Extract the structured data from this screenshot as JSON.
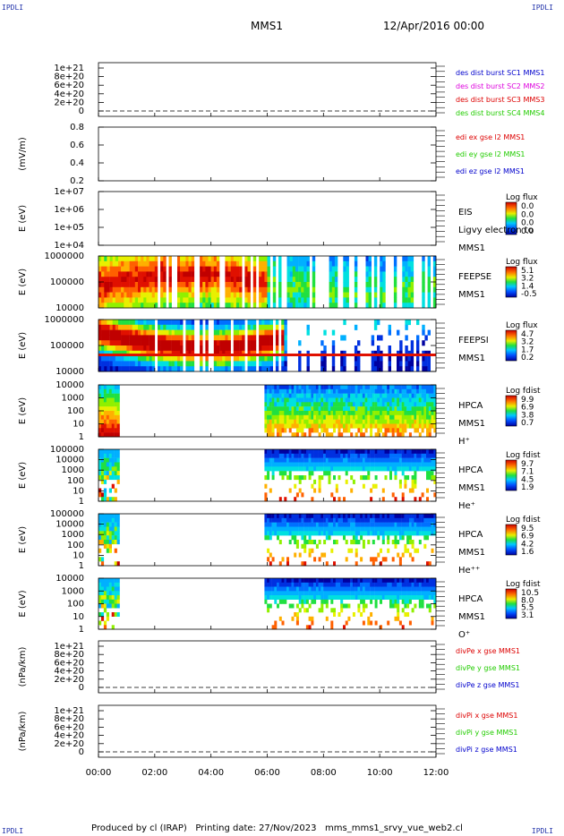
{
  "header": {
    "spacecraft": "MMS1",
    "datetime": "12/Apr/2016 00:00",
    "corner_label": "IPDLI"
  },
  "footer": {
    "text": "Produced by cl (IRAP)   Printing date: 27/Nov/2023   mms_mms1_srvy_vue_web2.cl"
  },
  "colors": {
    "red": "#dd0000",
    "magenta": "#dd00dd",
    "green": "#22cc00",
    "blue": "#0000cc"
  },
  "x_axis": {
    "ticks": [
      "00:00",
      "02:00",
      "04:00",
      "06:00",
      "08:00",
      "10:00",
      "12:00"
    ],
    "range_hours": [
      0,
      12
    ]
  },
  "chart_data": [
    {
      "type": "line",
      "id": "p1",
      "ylabel": "",
      "y_ticks": [
        "1e+21",
        "8e+20",
        "6e+20",
        "4e+20",
        "2e+20",
        "0"
      ],
      "ylim": [
        0,
        1.2e+21
      ],
      "dashed_zero": true,
      "series": [
        {
          "name": "des dist burst SC1 MMS1",
          "color": "#0000cc",
          "values": []
        },
        {
          "name": "des dist burst SC2 MMS2",
          "color": "#dd00dd",
          "values": []
        },
        {
          "name": "des dist burst SC3 MMS3",
          "color": "#dd0000",
          "values": []
        },
        {
          "name": "des dist burst SC4 MMS4",
          "color": "#22cc00",
          "values": []
        }
      ]
    },
    {
      "type": "line",
      "id": "p2",
      "ylabel": "(mV/m)",
      "y_ticks": [
        "0.8",
        "0.6",
        "0.4",
        "0.2"
      ],
      "ylim": [
        0.1,
        0.85
      ],
      "series": [
        {
          "name": "edi ex gse l2 MMS1",
          "color": "#dd0000",
          "values": []
        },
        {
          "name": "edi ey gse l2 MMS1",
          "color": "#22cc00",
          "values": []
        },
        {
          "name": "edi ez gse l2 MMS1",
          "color": "#0000cc",
          "values": []
        }
      ]
    },
    {
      "type": "heatmap",
      "id": "p3",
      "ylabel": "E (eV)",
      "y_ticks": [
        "1e+07",
        "1e+06",
        "1e+05",
        "1e+04"
      ],
      "right_labels": [
        "EIS",
        "Ligvy electron to",
        "MMS1"
      ],
      "colorbar": {
        "title": "Log flux",
        "ticks": [
          "0.0",
          "0.0",
          "0.0",
          "0.0"
        ]
      },
      "coverage_hours": []
    },
    {
      "type": "heatmap",
      "id": "p4",
      "ylabel": "E (eV)",
      "y_ticks": [
        "1000000",
        "100000",
        "10000"
      ],
      "right_labels": [
        "FEEPSE",
        "MMS1"
      ],
      "colorbar": {
        "title": "Log flux",
        "ticks": [
          "5.1",
          "3.2",
          "1.4",
          "-0.5"
        ]
      },
      "coverage_hours": [
        0,
        12
      ]
    },
    {
      "type": "heatmap",
      "id": "p5",
      "ylabel": "E (eV)",
      "y_ticks": [
        "1000000",
        "100000",
        "10000"
      ],
      "right_labels": [
        "FEEPSI",
        "MMS1"
      ],
      "colorbar": {
        "title": "Log flux",
        "ticks": [
          "4.7",
          "3.2",
          "1.7",
          "0.2"
        ]
      },
      "coverage_hours": [
        0,
        12
      ]
    },
    {
      "type": "heatmap",
      "id": "p6",
      "ylabel": "E (eV)",
      "y_ticks": [
        "10000",
        "1000",
        "100",
        "10",
        "1"
      ],
      "right_labels": [
        "HPCA",
        "MMS1",
        "H⁺"
      ],
      "colorbar": {
        "title": "Log fdist",
        "ticks": [
          "9.9",
          "6.9",
          "3.8",
          "0.7"
        ]
      },
      "coverage_hours": [
        [
          0,
          0.75
        ],
        [
          5.9,
          12
        ]
      ]
    },
    {
      "type": "heatmap",
      "id": "p7",
      "ylabel": "E (eV)",
      "y_ticks": [
        "100000",
        "10000",
        "1000",
        "100",
        "10",
        "1"
      ],
      "right_labels": [
        "HPCA",
        "MMS1",
        "He⁺"
      ],
      "colorbar": {
        "title": "Log fdist",
        "ticks": [
          "9.7",
          "7.1",
          "4.5",
          "1.9"
        ]
      },
      "coverage_hours": [
        [
          0,
          0.75
        ],
        [
          5.9,
          12
        ]
      ]
    },
    {
      "type": "heatmap",
      "id": "p8",
      "ylabel": "E (eV)",
      "y_ticks": [
        "100000",
        "10000",
        "1000",
        "100",
        "10",
        "1"
      ],
      "right_labels": [
        "HPCA",
        "MMS1",
        "He⁺⁺"
      ],
      "colorbar": {
        "title": "Log fdist",
        "ticks": [
          "9.5",
          "6.9",
          "4.2",
          "1.6"
        ]
      },
      "coverage_hours": [
        [
          0,
          0.75
        ],
        [
          5.9,
          12
        ]
      ]
    },
    {
      "type": "heatmap",
      "id": "p9",
      "ylabel": "E (eV)",
      "y_ticks": [
        "10000",
        "1000",
        "100",
        "10",
        "1"
      ],
      "right_labels": [
        "HPCA",
        "MMS1",
        "O⁺"
      ],
      "colorbar": {
        "title": "Log fdist",
        "ticks": [
          "10.5",
          "8.0",
          "5.5",
          "3.1"
        ]
      },
      "coverage_hours": [
        [
          0,
          0.75
        ],
        [
          5.9,
          12
        ]
      ]
    },
    {
      "type": "line",
      "id": "p10",
      "ylabel": "(nPa/km)",
      "y_ticks": [
        "1e+21",
        "8e+20",
        "6e+20",
        "4e+20",
        "2e+20",
        "0"
      ],
      "ylim": [
        0,
        1.2e+21
      ],
      "dashed_zero": true,
      "series": [
        {
          "name": "divPe x gse MMS1",
          "color": "#dd0000",
          "values": []
        },
        {
          "name": "divPe y gse MMS1",
          "color": "#22cc00",
          "values": []
        },
        {
          "name": "divPe z gse MMS1",
          "color": "#0000cc",
          "values": []
        }
      ]
    },
    {
      "type": "line",
      "id": "p11",
      "ylabel": "(nPa/km)",
      "y_ticks": [
        "1e+21",
        "8e+20",
        "6e+20",
        "4e+20",
        "2e+20",
        "0"
      ],
      "ylim": [
        0,
        1.2e+21
      ],
      "dashed_zero": true,
      "series": [
        {
          "name": "divPi x gse MMS1",
          "color": "#dd0000",
          "values": []
        },
        {
          "name": "divPi y gse MMS1",
          "color": "#22cc00",
          "values": []
        },
        {
          "name": "divPi z gse MMS1",
          "color": "#0000cc",
          "values": []
        }
      ]
    }
  ]
}
